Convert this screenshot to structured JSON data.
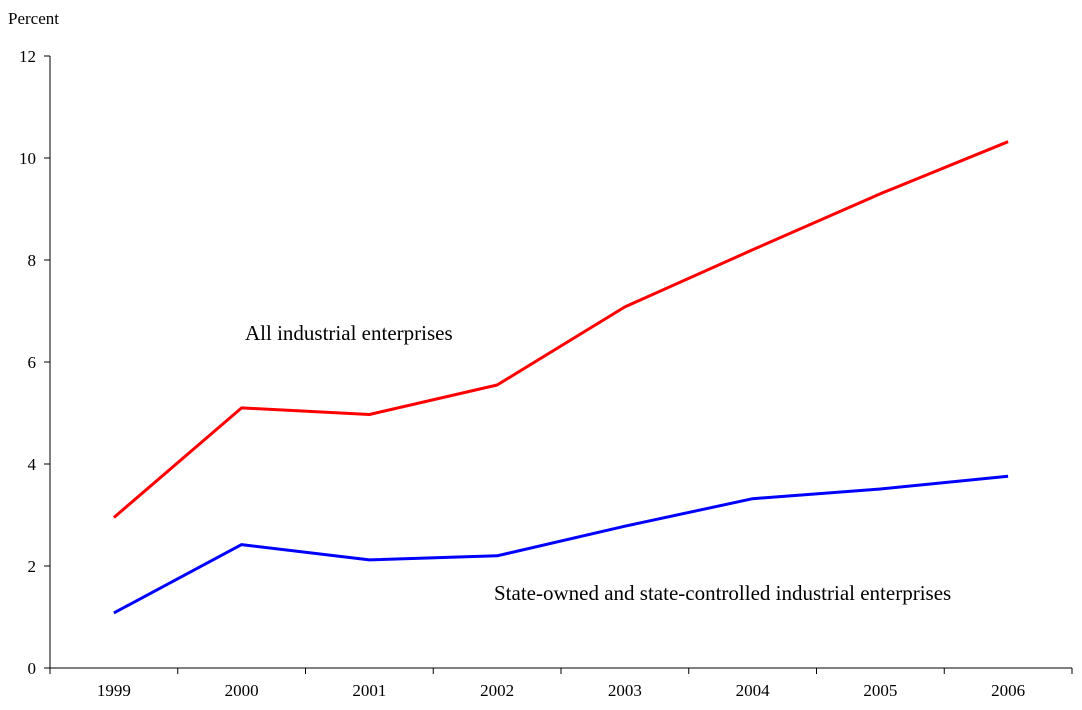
{
  "chart_data": {
    "type": "line",
    "title": "",
    "ylabel": "Percent",
    "xlabel": "",
    "categories": [
      "1999",
      "2000",
      "2001",
      "2002",
      "2003",
      "2004",
      "2005",
      "2006"
    ],
    "ylim": [
      0,
      12
    ],
    "yticks": [
      0,
      2,
      4,
      6,
      8,
      10,
      12
    ],
    "grid": false,
    "legend": "none",
    "series": [
      {
        "name": "All industrial enterprises",
        "color": "#ff0000",
        "values": [
          2.95,
          5.1,
          4.97,
          5.55,
          7.08,
          8.2,
          9.3,
          10.32
        ]
      },
      {
        "name": "State-owned and state-controlled industrial enterprises",
        "color": "#0000ff",
        "values": [
          1.08,
          2.42,
          2.12,
          2.2,
          2.78,
          3.32,
          3.51,
          3.76
        ]
      }
    ]
  }
}
